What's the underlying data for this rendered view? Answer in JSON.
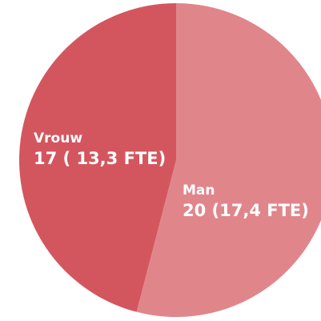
{
  "chart_data": {
    "type": "pie",
    "categories": [
      "Man",
      "Vrouw"
    ],
    "values": [
      20,
      17
    ],
    "value_labels": [
      "20 (17,4 FTE)",
      "17 ( 13,3 FTE)"
    ],
    "colors": [
      "#e0868b",
      "#d3565f"
    ]
  }
}
